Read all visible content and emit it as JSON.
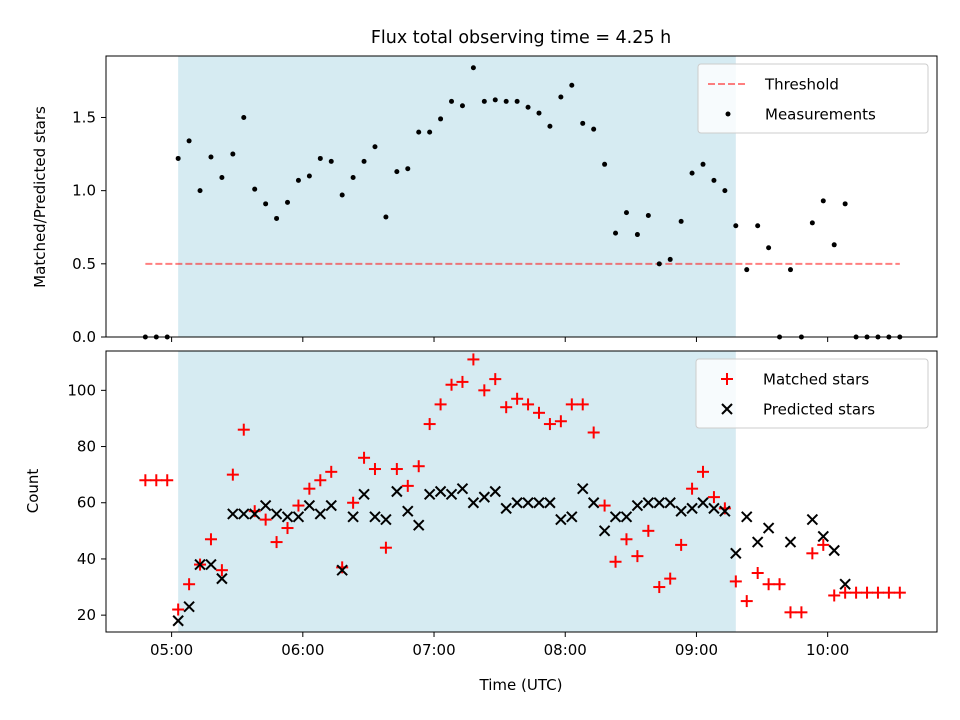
{
  "title": "Flux total observing time = 4.25 h",
  "colors": {
    "shade": "#add8e6",
    "threshold": "#ff0000",
    "measurements": "#000000",
    "matched": "#ff0000",
    "predicted": "#000000"
  },
  "chart_data": [
    {
      "type": "scatter",
      "ylabel": "Matched/Predicted stars",
      "ylim": [
        0,
        1.92
      ],
      "yticks": [
        "0.0",
        "0.5",
        "1.0",
        "1.5"
      ],
      "xlim": [
        "04:30",
        "10:50"
      ],
      "shaded_span": [
        "05:03",
        "09:18"
      ],
      "threshold": {
        "name": "Threshold",
        "value": 0.5,
        "x_range": [
          "04:48",
          "10:33"
        ]
      },
      "legend": {
        "position": "top-right"
      },
      "series": [
        {
          "name": "Measurements",
          "x": [
            "04:48",
            "04:53",
            "04:58",
            "05:03",
            "05:08",
            "05:13",
            "05:18",
            "05:23",
            "05:28",
            "05:33",
            "05:38",
            "05:43",
            "05:48",
            "05:53",
            "05:58",
            "06:03",
            "06:08",
            "06:13",
            "06:18",
            "06:23",
            "06:28",
            "06:33",
            "06:38",
            "06:43",
            "06:48",
            "06:53",
            "06:58",
            "07:03",
            "07:08",
            "07:13",
            "07:18",
            "07:23",
            "07:28",
            "07:33",
            "07:38",
            "07:43",
            "07:48",
            "07:53",
            "07:58",
            "08:03",
            "08:08",
            "08:13",
            "08:18",
            "08:23",
            "08:28",
            "08:33",
            "08:38",
            "08:43",
            "08:48",
            "08:53",
            "08:58",
            "09:03",
            "09:08",
            "09:13",
            "09:18",
            "09:23",
            "09:28",
            "09:33",
            "09:38",
            "09:43",
            "09:48",
            "09:53",
            "09:58",
            "10:03",
            "10:08",
            "10:13",
            "10:18",
            "10:23",
            "10:28",
            "10:33"
          ],
          "y": [
            0,
            0,
            0,
            1.22,
            1.34,
            1.0,
            1.23,
            1.09,
            1.25,
            1.5,
            1.01,
            0.91,
            0.81,
            0.92,
            1.07,
            1.1,
            1.22,
            1.2,
            0.97,
            1.09,
            1.2,
            1.3,
            0.82,
            1.13,
            1.15,
            1.4,
            1.4,
            1.49,
            1.61,
            1.58,
            1.84,
            1.61,
            1.62,
            1.61,
            1.61,
            1.57,
            1.53,
            1.44,
            1.64,
            1.72,
            1.46,
            1.42,
            1.18,
            0.71,
            0.85,
            0.7,
            0.83,
            0.5,
            0.53,
            0.79,
            1.12,
            1.18,
            1.07,
            1.0,
            0.76,
            0.46,
            0.76,
            0.61,
            0.0,
            0.46,
            0.0,
            0.78,
            0.93,
            0.63,
            0.91,
            0,
            0,
            0,
            0,
            0
          ]
        }
      ]
    },
    {
      "type": "scatter",
      "ylabel": "Count",
      "xlabel": "Time (UTC)",
      "ylim": [
        14,
        114
      ],
      "yticks": [
        "20",
        "40",
        "60",
        "80",
        "100"
      ],
      "xlim": [
        "04:30",
        "10:50"
      ],
      "xticks": [
        "05:00",
        "06:00",
        "07:00",
        "08:00",
        "09:00",
        "10:00"
      ],
      "shaded_span": [
        "05:03",
        "09:18"
      ],
      "legend": {
        "position": "top-right"
      },
      "series": [
        {
          "name": "Matched stars",
          "x": [
            "04:48",
            "04:53",
            "04:58",
            "05:03",
            "05:08",
            "05:13",
            "05:18",
            "05:23",
            "05:28",
            "05:33",
            "05:38",
            "05:43",
            "05:48",
            "05:53",
            "05:58",
            "06:03",
            "06:08",
            "06:13",
            "06:18",
            "06:23",
            "06:28",
            "06:33",
            "06:38",
            "06:43",
            "06:48",
            "06:53",
            "06:58",
            "07:03",
            "07:08",
            "07:13",
            "07:18",
            "07:23",
            "07:28",
            "07:33",
            "07:38",
            "07:43",
            "07:48",
            "07:53",
            "07:58",
            "08:03",
            "08:08",
            "08:13",
            "08:18",
            "08:23",
            "08:28",
            "08:33",
            "08:38",
            "08:43",
            "08:48",
            "08:53",
            "08:58",
            "09:03",
            "09:08",
            "09:13",
            "09:18",
            "09:23",
            "09:28",
            "09:33",
            "09:38",
            "09:43",
            "09:48",
            "09:53",
            "09:58",
            "10:03",
            "10:08",
            "10:13",
            "10:18",
            "10:23",
            "10:28",
            "10:33"
          ],
          "y": [
            68,
            68,
            68,
            22,
            31,
            38,
            47,
            36,
            70,
            86,
            57,
            54,
            46,
            51,
            59,
            65,
            68,
            71,
            37,
            60,
            76,
            72,
            44,
            72,
            66,
            73,
            88,
            95,
            102,
            103,
            111,
            100,
            104,
            94,
            97,
            95,
            92,
            88,
            89,
            95,
            95,
            85,
            59,
            39,
            47,
            41,
            50,
            30,
            33,
            45,
            65,
            71,
            62,
            58,
            32,
            25,
            35,
            31,
            31,
            21,
            21,
            42,
            45,
            27,
            28,
            28,
            28,
            28,
            28,
            28
          ]
        },
        {
          "name": "Predicted stars",
          "x": [
            "05:03",
            "05:08",
            "05:13",
            "05:18",
            "05:23",
            "05:28",
            "05:33",
            "05:38",
            "05:43",
            "05:48",
            "05:53",
            "05:58",
            "06:03",
            "06:08",
            "06:13",
            "06:18",
            "06:23",
            "06:28",
            "06:33",
            "06:38",
            "06:43",
            "06:48",
            "06:53",
            "06:58",
            "07:03",
            "07:08",
            "07:13",
            "07:18",
            "07:23",
            "07:28",
            "07:33",
            "07:38",
            "07:43",
            "07:48",
            "07:53",
            "07:58",
            "08:03",
            "08:08",
            "08:13",
            "08:18",
            "08:23",
            "08:28",
            "08:33",
            "08:38",
            "08:43",
            "08:48",
            "08:53",
            "08:58",
            "09:03",
            "09:08",
            "09:13",
            "09:18",
            "09:23",
            "09:28",
            "09:33",
            "09:43",
            "09:53",
            "09:58",
            "10:03",
            "10:08"
          ],
          "y": [
            18,
            23,
            38,
            38,
            33,
            56,
            56,
            56,
            59,
            56,
            55,
            55,
            59,
            56,
            59,
            36,
            55,
            63,
            55,
            54,
            64,
            57,
            52,
            63,
            64,
            63,
            65,
            60,
            62,
            64,
            58,
            60,
            60,
            60,
            60,
            54,
            55,
            65,
            60,
            50,
            55,
            55,
            59,
            60,
            60,
            60,
            57,
            58,
            60,
            58,
            57,
            42,
            55,
            46,
            51,
            46,
            54,
            48,
            43,
            31
          ]
        }
      ]
    }
  ]
}
